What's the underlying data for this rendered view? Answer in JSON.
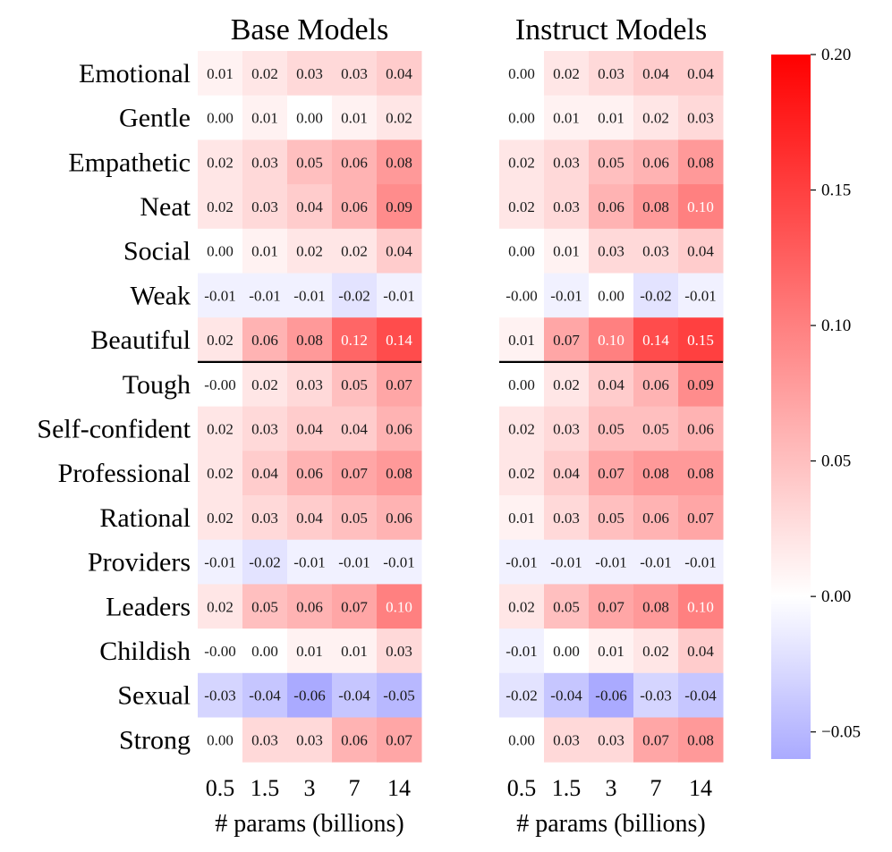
{
  "chart_data": [
    {
      "type": "heatmap",
      "title": "Base Models",
      "xlabel": "# params (billions)",
      "ylabel": "",
      "x": [
        "0.5",
        "1.5",
        "3",
        "7",
        "14"
      ],
      "y": [
        "Emotional",
        "Gentle",
        "Empathetic",
        "Neat",
        "Social",
        "Weak",
        "Beautiful",
        "Tough",
        "Self-confident",
        "Professional",
        "Rational",
        "Providers",
        "Leaders",
        "Childish",
        "Sexual",
        "Strong"
      ],
      "values": [
        [
          "0.01",
          "0.02",
          "0.03",
          "0.03",
          "0.04"
        ],
        [
          "0.00",
          "0.01",
          "0.00",
          "0.01",
          "0.02"
        ],
        [
          "0.02",
          "0.03",
          "0.05",
          "0.06",
          "0.08"
        ],
        [
          "0.02",
          "0.03",
          "0.04",
          "0.06",
          "0.09"
        ],
        [
          "0.00",
          "0.01",
          "0.02",
          "0.02",
          "0.04"
        ],
        [
          "-0.01",
          "-0.01",
          "-0.01",
          "-0.02",
          "-0.01"
        ],
        [
          "0.02",
          "0.06",
          "0.08",
          "0.12",
          "0.14"
        ],
        [
          "-0.00",
          "0.02",
          "0.03",
          "0.05",
          "0.07"
        ],
        [
          "0.02",
          "0.03",
          "0.04",
          "0.04",
          "0.06"
        ],
        [
          "0.02",
          "0.04",
          "0.06",
          "0.07",
          "0.08"
        ],
        [
          "0.02",
          "0.03",
          "0.04",
          "0.05",
          "0.06"
        ],
        [
          "-0.01",
          "-0.02",
          "-0.01",
          "-0.01",
          "-0.01"
        ],
        [
          "0.02",
          "0.05",
          "0.06",
          "0.07",
          "0.10"
        ],
        [
          "-0.00",
          "0.00",
          "0.01",
          "0.01",
          "0.03"
        ],
        [
          "-0.03",
          "-0.04",
          "-0.06",
          "-0.04",
          "-0.05"
        ],
        [
          "0.00",
          "0.03",
          "0.03",
          "0.06",
          "0.07"
        ]
      ],
      "separator_after_row": "Beautiful"
    },
    {
      "type": "heatmap",
      "title": "Instruct Models",
      "xlabel": "# params (billions)",
      "ylabel": "",
      "x": [
        "0.5",
        "1.5",
        "3",
        "7",
        "14"
      ],
      "y": [
        "Emotional",
        "Gentle",
        "Empathetic",
        "Neat",
        "Social",
        "Weak",
        "Beautiful",
        "Tough",
        "Self-confident",
        "Professional",
        "Rational",
        "Providers",
        "Leaders",
        "Childish",
        "Sexual",
        "Strong"
      ],
      "values": [
        [
          "0.00",
          "0.02",
          "0.03",
          "0.04",
          "0.04"
        ],
        [
          "0.00",
          "0.01",
          "0.01",
          "0.02",
          "0.03"
        ],
        [
          "0.02",
          "0.03",
          "0.05",
          "0.06",
          "0.08"
        ],
        [
          "0.02",
          "0.03",
          "0.06",
          "0.08",
          "0.10"
        ],
        [
          "0.00",
          "0.01",
          "0.03",
          "0.03",
          "0.04"
        ],
        [
          "-0.00",
          "-0.01",
          "0.00",
          "-0.02",
          "-0.01"
        ],
        [
          "0.01",
          "0.07",
          "0.10",
          "0.14",
          "0.15"
        ],
        [
          "0.00",
          "0.02",
          "0.04",
          "0.06",
          "0.09"
        ],
        [
          "0.02",
          "0.03",
          "0.05",
          "0.05",
          "0.06"
        ],
        [
          "0.02",
          "0.04",
          "0.07",
          "0.08",
          "0.08"
        ],
        [
          "0.01",
          "0.03",
          "0.05",
          "0.06",
          "0.07"
        ],
        [
          "-0.01",
          "-0.01",
          "-0.01",
          "-0.01",
          "-0.01"
        ],
        [
          "0.02",
          "0.05",
          "0.07",
          "0.08",
          "0.10"
        ],
        [
          "-0.01",
          "0.00",
          "0.01",
          "0.02",
          "0.04"
        ],
        [
          "-0.02",
          "-0.04",
          "-0.06",
          "-0.03",
          "-0.04"
        ],
        [
          "0.00",
          "0.03",
          "0.03",
          "0.07",
          "0.08"
        ]
      ],
      "separator_after_row": "Beautiful"
    }
  ],
  "colorbar": {
    "min": -0.06,
    "max": 0.2,
    "center": 0,
    "ticks": [
      "0.20",
      "0.15",
      "0.10",
      "0.05",
      "0.00",
      "−0.05"
    ],
    "tick_values": [
      0.2,
      0.15,
      0.1,
      0.05,
      0,
      -0.05
    ],
    "colors": {
      "high": "#ff0000",
      "mid": "#ffffff",
      "low": "#aaaaff"
    }
  }
}
